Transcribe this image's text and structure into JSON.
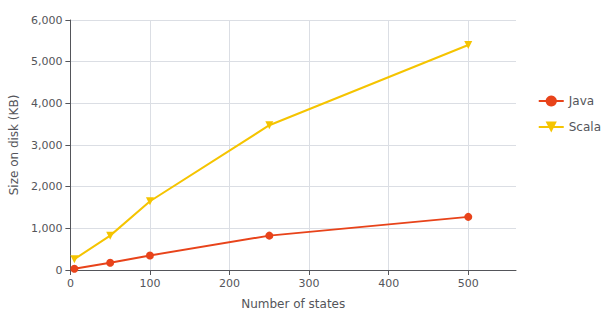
{
  "chart_data": {
    "type": "line",
    "xlabel": "Number of states",
    "ylabel": "Size on disk (KB)",
    "x": [
      5,
      50,
      100,
      250,
      500
    ],
    "series": [
      {
        "name": "Java",
        "color": "#e8431a",
        "marker": "circle",
        "values": [
          30,
          175,
          350,
          825,
          1275
        ]
      },
      {
        "name": "Scala",
        "color": "#f5c400",
        "marker": "triangle-down",
        "values": [
          260,
          825,
          1650,
          3475,
          5400
        ]
      }
    ],
    "xlim": [
      0,
      560
    ],
    "ylim": [
      0,
      6000
    ],
    "xticks": [
      0,
      100,
      200,
      300,
      400,
      500
    ],
    "yticks": [
      0,
      1000,
      2000,
      3000,
      4000,
      5000,
      6000
    ],
    "grid": true,
    "legend": "right"
  }
}
